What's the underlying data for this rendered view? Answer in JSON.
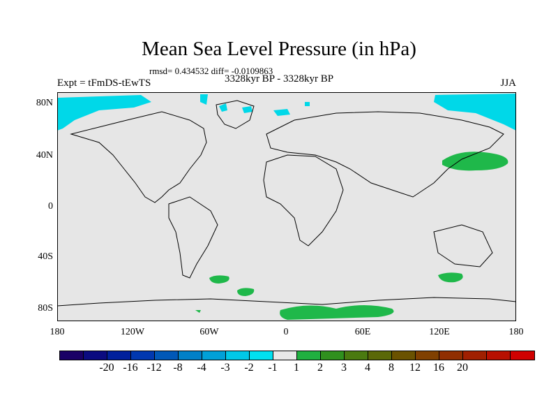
{
  "header": {
    "title": "Mean Sea Level Pressure (in hPa)",
    "stats": "rmsd= 0.434532 diff= -0.0109863",
    "experiment": "Expt = tFmDS-tEwTS",
    "period": "3328kyr BP - 3328kyr BP",
    "season": "JJA"
  },
  "map": {
    "background_color": "#e6e6e6",
    "land_outline_color": "#000000",
    "lat_labels": [
      "80N",
      "40N",
      "0",
      "40S",
      "80S"
    ],
    "lon_labels": [
      "180",
      "120W",
      "60W",
      "0",
      "60E",
      "120E",
      "180"
    ],
    "anomaly_regions": [
      {
        "name": "arctic-negative-anomaly",
        "color": "#00d8e8",
        "level": "-2 to -1"
      },
      {
        "name": "northwest-pacific-positive-anomaly",
        "color": "#1fb84a",
        "level": "1 to 2"
      },
      {
        "name": "southern-ocean-positive-anomalies",
        "color": "#1fb84a",
        "level": "1 to 2"
      }
    ]
  },
  "colorbar": {
    "colors": [
      "#1a0066",
      "#0b0b80",
      "#00209c",
      "#0038b0",
      "#0058b8",
      "#0080c8",
      "#00a0d8",
      "#00c8e8",
      "#00e0f0",
      "#e8e8e8",
      "#20b040",
      "#30901e",
      "#4a7a10",
      "#5a6808",
      "#6a5200",
      "#804000",
      "#902e00",
      "#a02000",
      "#b81000",
      "#d00000"
    ],
    "labels": [
      "-20",
      "-16",
      "-12",
      "-8",
      "-4",
      "-3",
      "-2",
      "-1",
      "1",
      "2",
      "3",
      "4",
      "8",
      "12",
      "16",
      "20"
    ]
  }
}
